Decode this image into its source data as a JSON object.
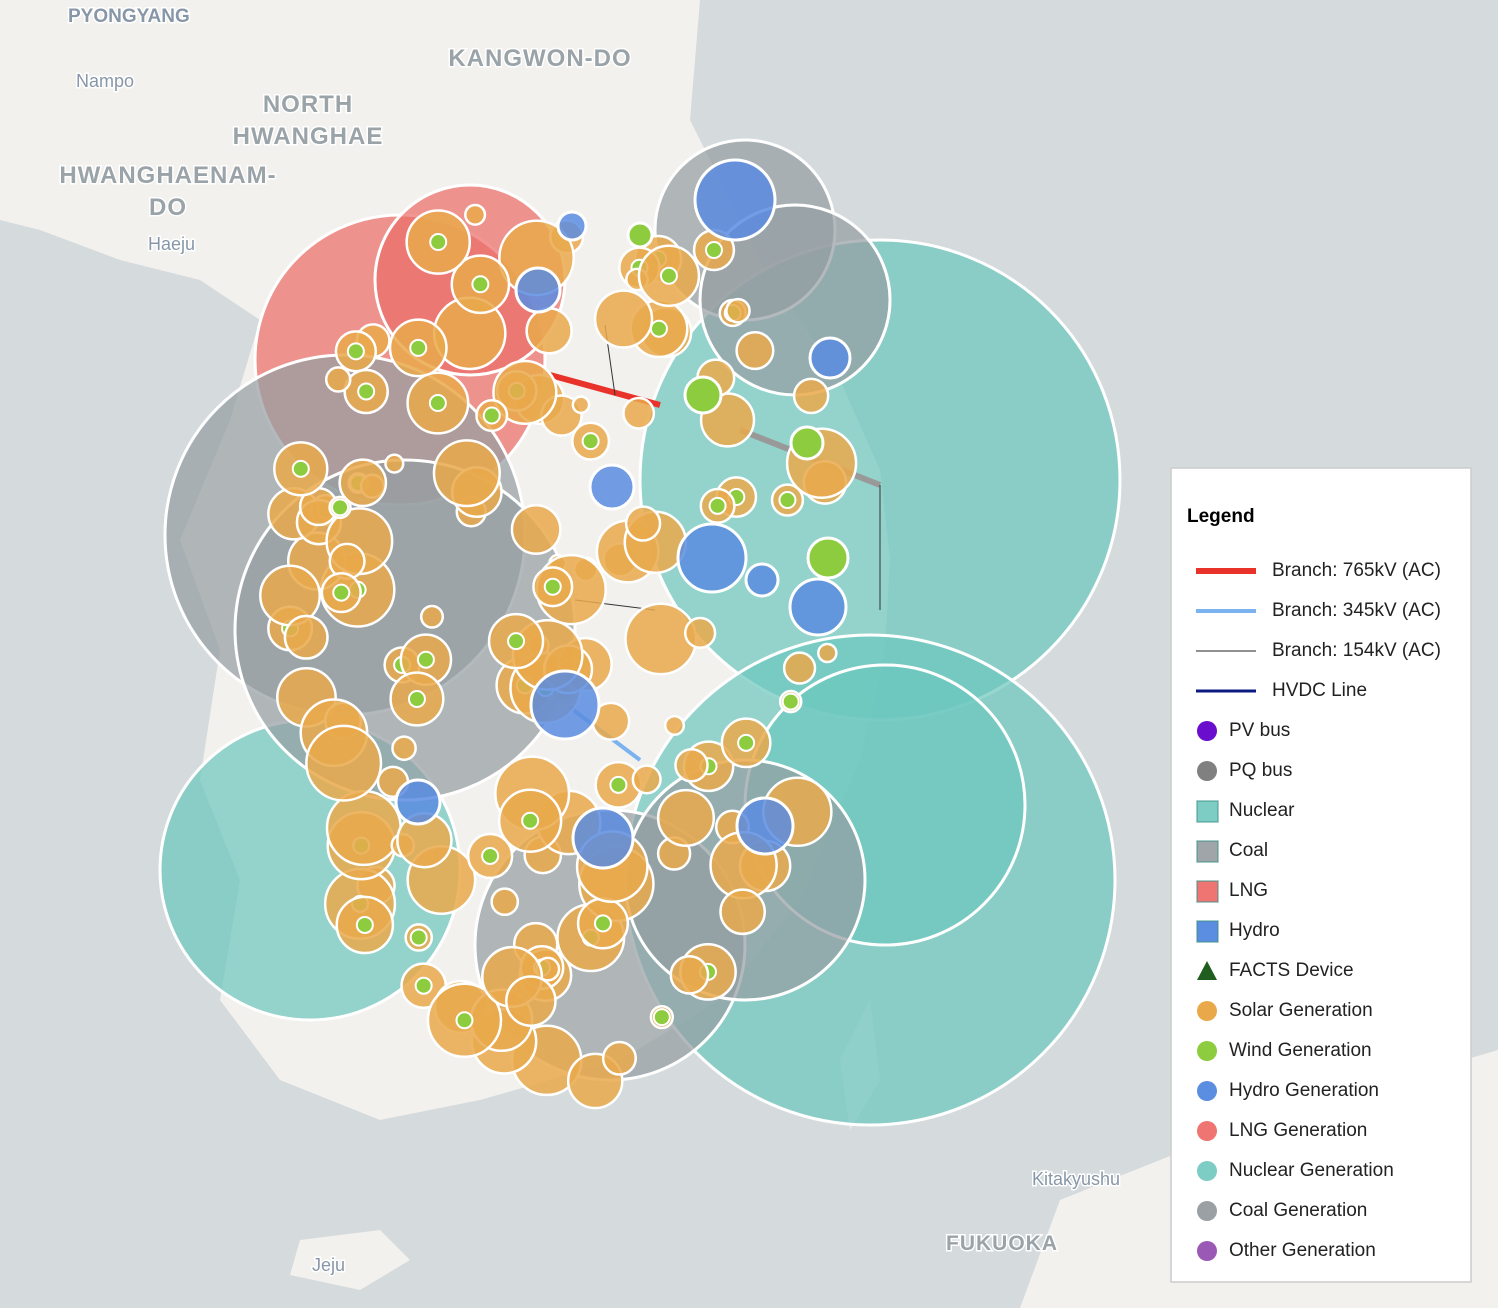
{
  "map_labels": [
    {
      "text": "PYONGYANG"
    },
    {
      "text": "Nampo"
    },
    {
      "text": "KANGWON-DO"
    },
    {
      "lines": [
        "NORTH",
        "HWANGHAE"
      ]
    },
    {
      "lines": [
        "HWANGHAENAM-",
        "DO"
      ]
    },
    {
      "text": "Haeju"
    },
    {
      "text": "Kitakyushu"
    },
    {
      "text": "FUKUOKA"
    },
    {
      "text": "Jeju"
    }
  ],
  "legend": {
    "title": "Legend",
    "items": [
      {
        "label": "Branch: 765kV (AC)",
        "symbol": "line",
        "color": "#e8322a",
        "width": 6
      },
      {
        "label": "Branch: 345kV (AC)",
        "symbol": "line",
        "color": "#7ab3ef",
        "width": 4
      },
      {
        "label": "Branch: 154kV (AC)",
        "symbol": "line",
        "color": "#222222",
        "width": 1
      },
      {
        "label": "HVDC Line",
        "symbol": "line",
        "color": "#0a1a80",
        "width": 3
      },
      {
        "label": "PV bus",
        "symbol": "circle",
        "color": "#6a0dcc"
      },
      {
        "label": "PQ bus",
        "symbol": "circle",
        "color": "#808080"
      },
      {
        "label": "Nuclear",
        "symbol": "square",
        "color": "#7ecdc4"
      },
      {
        "label": "Coal",
        "symbol": "square",
        "color": "#9fa5a8"
      },
      {
        "label": "LNG",
        "symbol": "square",
        "color": "#ee7571"
      },
      {
        "label": "Hydro",
        "symbol": "square",
        "color": "#5b8ee0"
      },
      {
        "label": "FACTS Device",
        "symbol": "triangle",
        "color": "#1f5e1f"
      },
      {
        "label": "Solar Generation",
        "symbol": "circle",
        "color": "#e9a94b"
      },
      {
        "label": "Wind Generation",
        "symbol": "circle",
        "color": "#8dcc3f"
      },
      {
        "label": "Hydro Generation",
        "symbol": "circle",
        "color": "#5b8ee0"
      },
      {
        "label": "LNG Generation",
        "symbol": "circle",
        "color": "#ee7571"
      },
      {
        "label": "Nuclear Generation",
        "symbol": "circle",
        "color": "#7ecdc4"
      },
      {
        "label": "Coal Generation",
        "symbol": "circle",
        "color": "#9aa0a3"
      },
      {
        "label": "Other Generation",
        "symbol": "circle",
        "color": "#9b59b6"
      }
    ]
  }
}
